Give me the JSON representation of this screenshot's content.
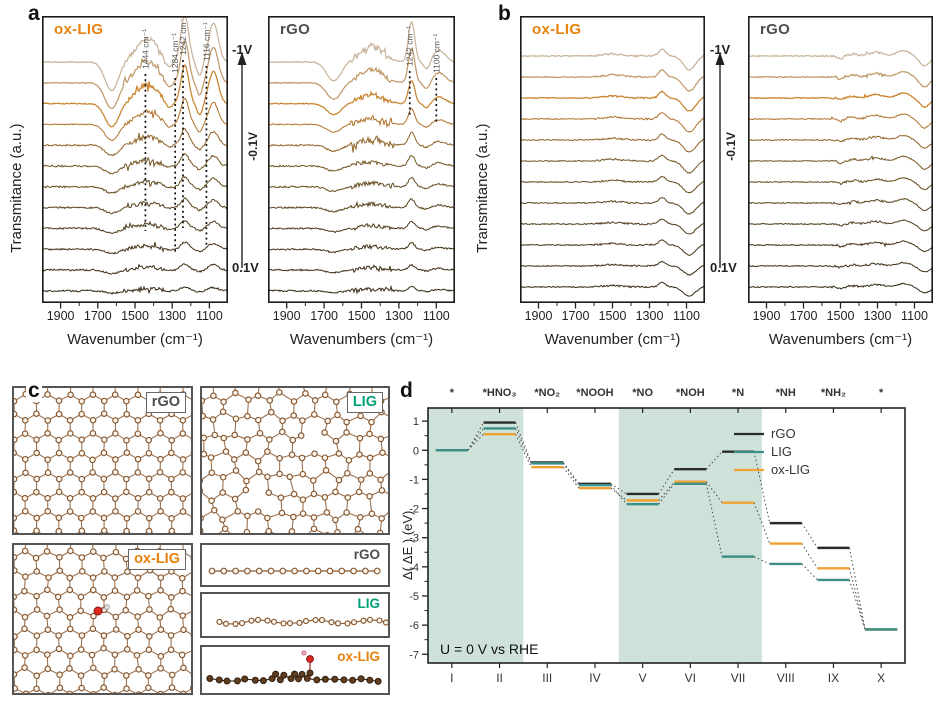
{
  "colors": {
    "ox_lig_accent": "#e8820c",
    "lig_accent": "#00a07a",
    "rgo_accent": "#4d4d4d",
    "shade": "#cfe2da",
    "spectra_palette": [
      "#c9b49c",
      "#c19a6b",
      "#c8842e",
      "#b0722a",
      "#8f6326",
      "#745622",
      "#654c1f",
      "#59431c",
      "#4e3b1a",
      "#453417",
      "#3d2e15",
      "#352912"
    ]
  },
  "panel_a": {
    "label": "a",
    "ylabel": "Transmitance (a.u.)",
    "xticks": [
      "1900",
      "1700",
      "1500",
      "1300",
      "1100"
    ],
    "left": {
      "title": "ox-LIG",
      "xlabel": "Wavenumber (cm⁻¹)",
      "annotations": [
        {
          "text": "1444 cm⁻¹",
          "wn": 1444
        },
        {
          "text": "1284 cm⁻¹",
          "wn": 1284
        },
        {
          "text": "1242 cm⁻¹",
          "wn": 1242
        },
        {
          "text": "1116 cm⁻¹",
          "wn": 1116
        }
      ]
    },
    "right": {
      "title": "rGO",
      "xlabel": "Wavenumbers (cm⁻¹)",
      "annotations": [
        {
          "text": "1242 cm⁻¹",
          "wn": 1242
        },
        {
          "text": "1100 cm⁻¹",
          "wn": 1100
        }
      ]
    },
    "arrow": {
      "top": "-1V",
      "mid": "-0.1V",
      "bottom": "0.1V"
    }
  },
  "panel_b": {
    "label": "b",
    "ylabel": "Transmitance (a.u.)",
    "xticks": [
      "1900",
      "1700",
      "1500",
      "1300",
      "1100"
    ],
    "left": {
      "title": "ox-LIG",
      "xlabel": "Wavenumber (cm⁻¹)",
      "annotations": []
    },
    "right": {
      "title": "rGO",
      "xlabel": "Wavenumbers (cm⁻¹)",
      "annotations": []
    },
    "arrow": {
      "top": "-1V",
      "mid": "-0.1V",
      "bottom": "0.1V"
    }
  },
  "panel_c": {
    "label": "c",
    "top_left_label": "rGO",
    "top_right_label": "LIG",
    "bottom_left_label": "ox-LIG",
    "side_rgo_label": "rGO",
    "side_lig_label": "LIG",
    "side_oxlig_label": "ox-LIG"
  },
  "panel_d": {
    "label": "d"
  },
  "chart_data": {
    "type": "line",
    "subtype": "step-energy-diagram",
    "steps": [
      "I",
      "II",
      "III",
      "IV",
      "V",
      "VI",
      "VII",
      "VIII",
      "IX",
      "X"
    ],
    "adsorbates": [
      "*",
      "*HNO₃",
      "*NO₂",
      "*NOOH",
      "*NO",
      "*NOH",
      "*N",
      "*NH",
      "*NH₂",
      "*"
    ],
    "ylabel": "Δ( ΔE ) (eV)",
    "ylim": [
      -7,
      1
    ],
    "yticks": [
      1,
      0,
      -1,
      -2,
      -3,
      -4,
      -5,
      -6,
      -7
    ],
    "condition_label": "U = 0 V vs RHE",
    "legend_position": "top-right",
    "shaded_step_ranges": [
      [
        "I",
        "II"
      ],
      [
        "V",
        "VII"
      ]
    ],
    "shade_color": "#cfe2da",
    "series": [
      {
        "name": "rGO",
        "color": "#2b2b2b",
        "values": [
          0.0,
          0.95,
          -0.42,
          -1.15,
          -1.5,
          -0.65,
          -0.05,
          -2.5,
          -3.35,
          -6.15
        ]
      },
      {
        "name": "LIG",
        "color": "#3d9089",
        "values": [
          0.0,
          0.75,
          -0.45,
          -1.2,
          -1.85,
          -1.15,
          -3.65,
          -3.9,
          -4.45,
          -6.15
        ]
      },
      {
        "name": "ox-LIG",
        "color": "#f0a132",
        "values": [
          0.0,
          0.55,
          -0.58,
          -1.3,
          -1.72,
          -1.08,
          -1.8,
          -3.2,
          -4.05,
          -6.15
        ]
      }
    ]
  }
}
